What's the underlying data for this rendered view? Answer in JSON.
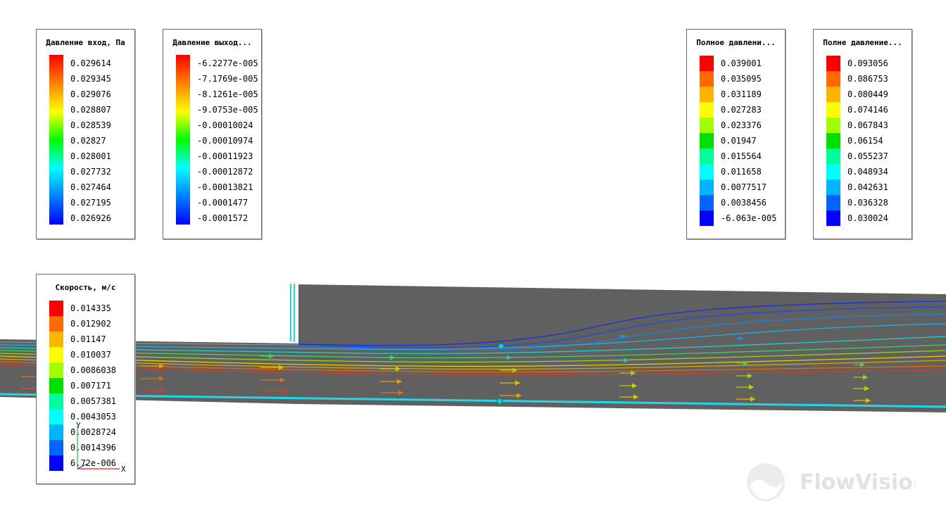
{
  "legends": [
    {
      "id": "pressure-in",
      "title": "Давление вход, Па",
      "mode": "gradient",
      "gradient": [
        "#ff0000",
        "#ff8000",
        "#ffff00",
        "#00ff00",
        "#00ffff",
        "#0080ff",
        "#0000ff"
      ],
      "values": [
        "0.029614",
        "0.029345",
        "0.029076",
        "0.028807",
        "0.028539",
        "0.02827",
        "0.028001",
        "0.027732",
        "0.027464",
        "0.027195",
        "0.026926"
      ]
    },
    {
      "id": "pressure-out",
      "title": "Давление выход...",
      "mode": "gradient",
      "gradient": [
        "#ff0000",
        "#ff8000",
        "#ffff00",
        "#00ff00",
        "#00ffff",
        "#0080ff",
        "#0000ff"
      ],
      "values": [
        "-6.2277e-005",
        "-7.1769e-005",
        "-8.1261e-005",
        "-9.0753e-005",
        "-0.00010024",
        "-0.00010974",
        "-0.00011923",
        "-0.00012872",
        "-0.00013821",
        "-0.0001477",
        "-0.0001572"
      ]
    },
    {
      "id": "total-pressure-1",
      "title": "Полное давлени...",
      "mode": "discrete",
      "colors": [
        "#ff0000",
        "#ff6a00",
        "#ffb400",
        "#ffff00",
        "#a0ff00",
        "#00e000",
        "#00ff9c",
        "#00ffff",
        "#00b4ff",
        "#0064ff",
        "#0000ff"
      ],
      "values": [
        "0.039001",
        "0.035095",
        "0.031189",
        "0.027283",
        "0.023376",
        "0.01947",
        "0.015564",
        "0.011658",
        "0.0077517",
        "0.0038456",
        "-6.063e-005"
      ]
    },
    {
      "id": "total-pressure-2",
      "title": "Полне давление...",
      "mode": "discrete",
      "colors": [
        "#ff0000",
        "#ff6a00",
        "#ffb400",
        "#ffff00",
        "#a0ff00",
        "#00e000",
        "#00ff9c",
        "#00ffff",
        "#00b4ff",
        "#0064ff",
        "#0000ff"
      ],
      "values": [
        "0.093056",
        "0.086753",
        "0.080449",
        "0.074146",
        "0.067843",
        "0.06154",
        "0.055237",
        "0.048934",
        "0.042631",
        "0.036328",
        "0.030024"
      ]
    },
    {
      "id": "velocity",
      "title": "Скорость, м/с",
      "mode": "discrete",
      "colors": [
        "#ff0000",
        "#ff6a00",
        "#ffb400",
        "#ffff00",
        "#a0ff00",
        "#00e000",
        "#00ff9c",
        "#00ffff",
        "#00b4ff",
        "#0064ff",
        "#0000ff"
      ],
      "values": [
        "0.014335",
        "0.012902",
        "0.01147",
        "0.010037",
        "0.0086038",
        "0.007171",
        "0.0057381",
        "0.0043053",
        "0.0028724",
        "0.0014396",
        "6.72e-006"
      ]
    }
  ],
  "axes": {
    "x_label": "X",
    "y_label": "Y"
  },
  "logo": {
    "text": "FlowVision"
  },
  "colors": {
    "geometry": "#606060",
    "boundary": "#20d8e8"
  }
}
